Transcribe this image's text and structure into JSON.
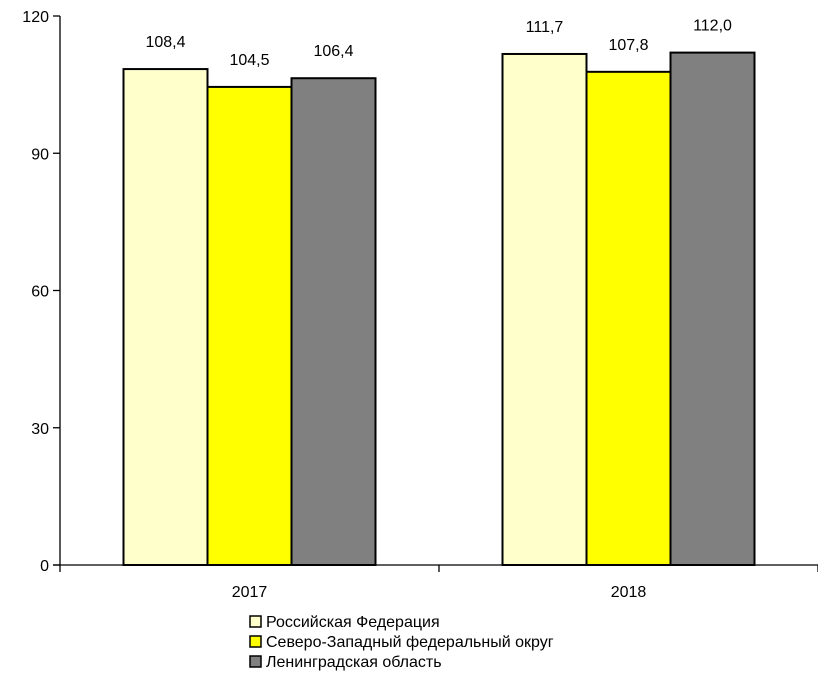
{
  "chart_data": {
    "type": "bar",
    "title": "",
    "xlabel": "",
    "ylabel": "",
    "categories": [
      "2017",
      "2018"
    ],
    "ylim": [
      0,
      120
    ],
    "yticks": [
      0,
      30,
      60,
      90,
      120
    ],
    "grid": false,
    "legend_position": "bottom",
    "series": [
      {
        "name": "Российская Федерация",
        "values": [
          108.4,
          111.7
        ],
        "value_labels": [
          "108,4",
          "111,7"
        ],
        "color": "#FFFFCC"
      },
      {
        "name": "Северо-Западный федеральный округ",
        "values": [
          104.5,
          107.8
        ],
        "value_labels": [
          "104,5",
          "107,8"
        ],
        "color": "#FFFF00"
      },
      {
        "name": "Ленинградская область",
        "values": [
          106.4,
          112.0
        ],
        "value_labels": [
          "106,4",
          "112,0"
        ],
        "color": "#808080"
      }
    ]
  }
}
